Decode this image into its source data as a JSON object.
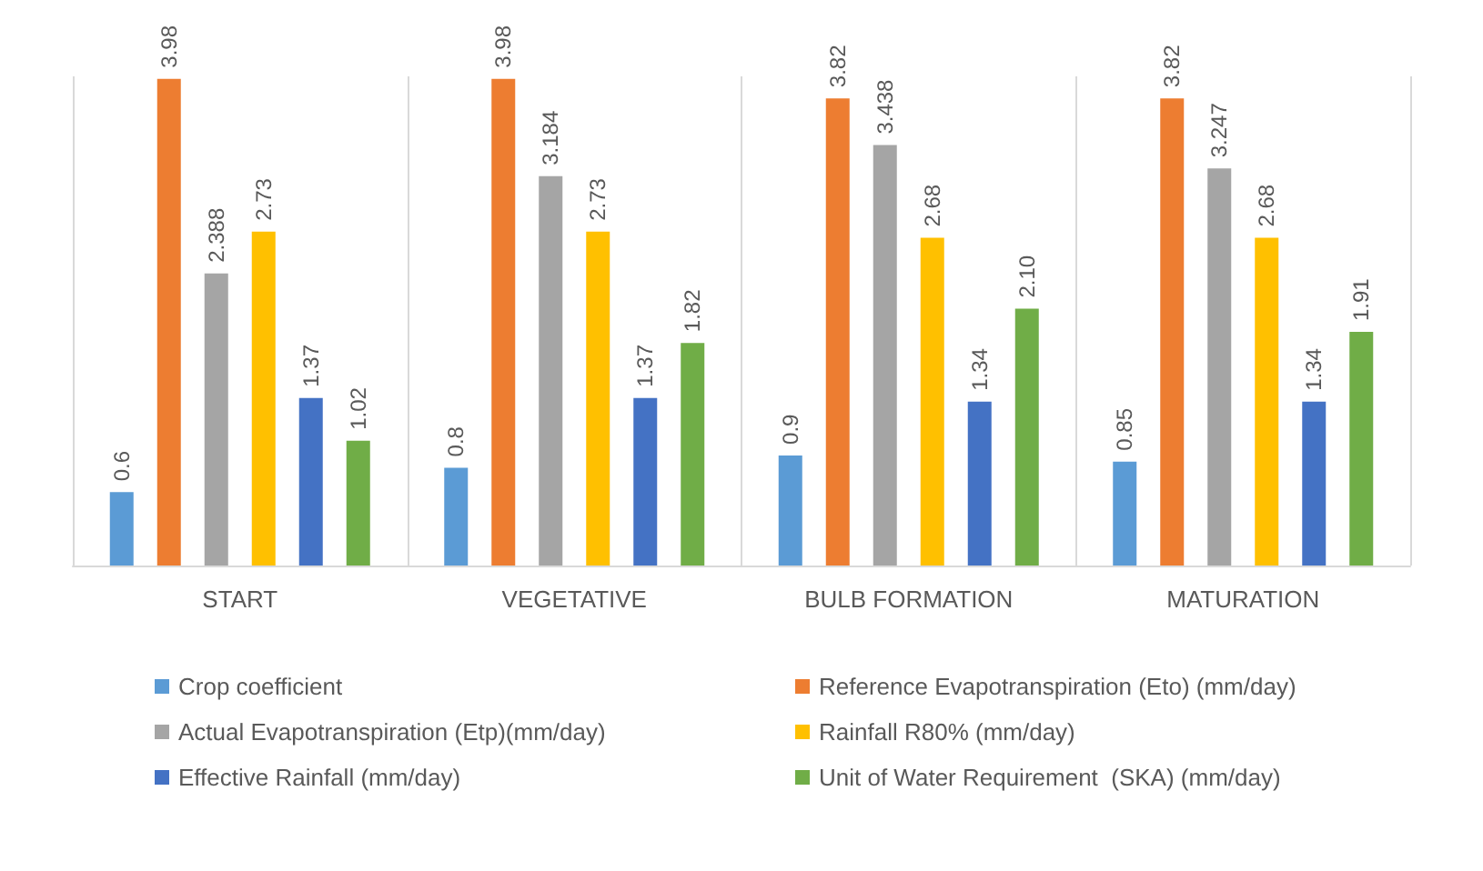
{
  "chart_data": {
    "type": "bar",
    "categories": [
      "START",
      "VEGETATIVE",
      "BULB FORMATION",
      "MATURATION"
    ],
    "series": [
      {
        "name": "Crop coefficient",
        "color": "#5b9bd5",
        "values": [
          0.6,
          0.8,
          0.9,
          0.85
        ],
        "value_labels": [
          "0.6",
          "0.8",
          "0.9",
          "0.85"
        ]
      },
      {
        "name": "Reference Evapotranspiration (Eto) (mm/day)",
        "color": "#ed7d31",
        "values": [
          3.98,
          3.98,
          3.82,
          3.82
        ],
        "value_labels": [
          "3.98",
          "3.98",
          "3.82",
          "3.82"
        ]
      },
      {
        "name": "Actual Evapotranspiration (Etp)(mm/day)",
        "color": "#a5a5a5",
        "values": [
          2.388,
          3.184,
          3.438,
          3.247
        ],
        "value_labels": [
          "2.388",
          "3.184",
          "3.438",
          "3.247"
        ]
      },
      {
        "name": "Rainfall R80% (mm/day)",
        "color": "#ffc000",
        "values": [
          2.73,
          2.73,
          2.68,
          2.68
        ],
        "value_labels": [
          "2.73",
          "2.73",
          "2.68",
          "2.68"
        ]
      },
      {
        "name": "Effective Rainfall (mm/day)",
        "color": "#4472c4",
        "values": [
          1.37,
          1.37,
          1.34,
          1.34
        ],
        "value_labels": [
          "1.37",
          "1.37",
          "1.34",
          "1.34"
        ]
      },
      {
        "name": "Unit of Water Requirement  (SKA) (mm/day)",
        "color": "#70ad47",
        "values": [
          1.02,
          1.82,
          2.1,
          1.91
        ],
        "value_labels": [
          "1.02",
          "1.82",
          "2.10",
          "1.91"
        ]
      }
    ],
    "grid": "x",
    "legend": "bottom"
  }
}
